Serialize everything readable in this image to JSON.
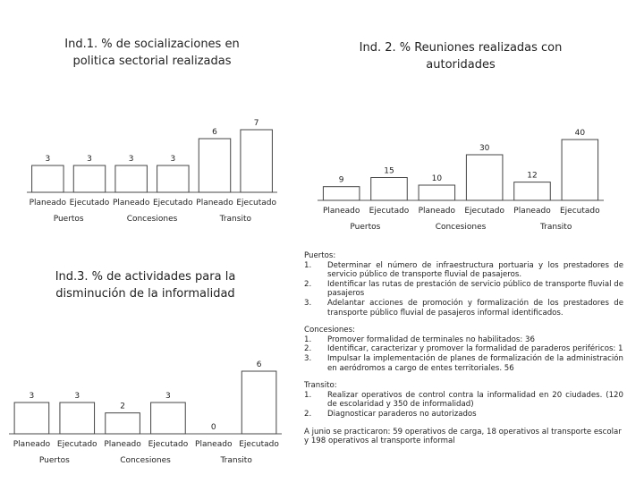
{
  "chart_data": [
    {
      "type": "bar",
      "title": "Ind.1. % de socializaciones en politica sectorial realizadas",
      "categories": [
        "Planeado",
        "Ejecutado",
        "Planeado",
        "Ejecutado",
        "Planeado",
        "Ejecutado"
      ],
      "groups": [
        "Puertos",
        "Concesiones",
        "Transito"
      ],
      "values": [
        3,
        3,
        3,
        3,
        6,
        7
      ],
      "color": "#ffffff"
    },
    {
      "type": "bar",
      "title": "Ind. 2. % Reuniones realizadas con autoridades",
      "categories": [
        "Planeado",
        "Ejecutado",
        "Planeado",
        "Ejecutado",
        "Planeado",
        "Ejecutado"
      ],
      "groups": [
        "Puertos",
        "Concesiones",
        "Transito"
      ],
      "values": [
        9,
        15,
        10,
        30,
        12,
        40
      ],
      "color": "#ffffff"
    },
    {
      "type": "bar",
      "title": "Ind.3. % de actividades para la disminución de la informalidad",
      "categories": [
        "Planeado",
        "Ejecutado",
        "Planeado",
        "Ejecutado",
        "Planeado",
        "Ejecutado"
      ],
      "groups": [
        "Puertos",
        "Concesiones",
        "Transito"
      ],
      "values": [
        3,
        3,
        2,
        3,
        0,
        6
      ],
      "color": "#ffffff"
    }
  ],
  "notes": [
    {
      "heading": "Puertos:",
      "items": [
        "Determinar el número de infraestructura portuaria y los prestadores de servicio público de transporte fluvial de pasajeros.",
        "Identificar las rutas de prestación de servicio público de transporte fluvial de pasajeros",
        "Adelantar acciones de promoción y formalización de los prestadores de transporte público fluvial de pasajeros informal identificados."
      ]
    },
    {
      "heading": "Concesiones:",
      "items": [
        "Promover formalidad de terminales no habilitados: 36",
        "Identificar, caracterizar y promover la formalidad de paraderos periféricos: 1",
        "Impulsar la implementación de planes de formalización de la administración en aeródromos a cargo de entes territoriales. 56"
      ]
    },
    {
      "heading": "Transito:",
      "items": [
        "Realizar operativos de control contra la informalidad en 20 ciudades. (120 de escolaridad y 350 de informalidad)",
        "Diagnosticar paraderos no autorizados"
      ]
    }
  ],
  "summary": "A junio se practicaron: 59 operativos de carga, 18 operativos al transporte escolar y 198 operativos al transporte informal"
}
